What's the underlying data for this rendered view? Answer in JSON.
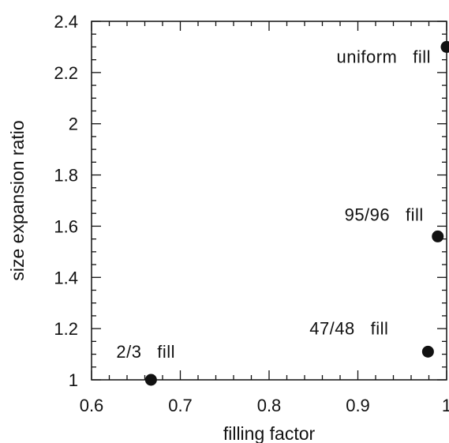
{
  "chart_data": {
    "type": "scatter",
    "xlabel": "filling factor",
    "ylabel": "size expansion ratio",
    "xlim": [
      0.6,
      1.0
    ],
    "ylim": [
      1.0,
      2.4
    ],
    "x_ticks": [
      0.6,
      0.7,
      0.8,
      0.9,
      1.0
    ],
    "x_tick_labels": [
      "0.6",
      "0.7",
      "0.8",
      "0.9",
      "1"
    ],
    "y_ticks": [
      1.0,
      1.2,
      1.4,
      1.6,
      1.8,
      2.0,
      2.2,
      2.4
    ],
    "y_tick_labels": [
      "1",
      "1.2",
      "1.4",
      "1.6",
      "1.8",
      "2",
      "2.2",
      "2.4"
    ],
    "grid": false,
    "points": [
      {
        "x": 0.667,
        "y": 1.0,
        "label": "2/3   fill"
      },
      {
        "x": 0.979,
        "y": 1.11,
        "label": "47/48   fill"
      },
      {
        "x": 0.99,
        "y": 1.56,
        "label": "95/96   fill"
      },
      {
        "x": 1.0,
        "y": 2.3,
        "label": "uniform   fill"
      }
    ],
    "marker_color": "#111111"
  }
}
